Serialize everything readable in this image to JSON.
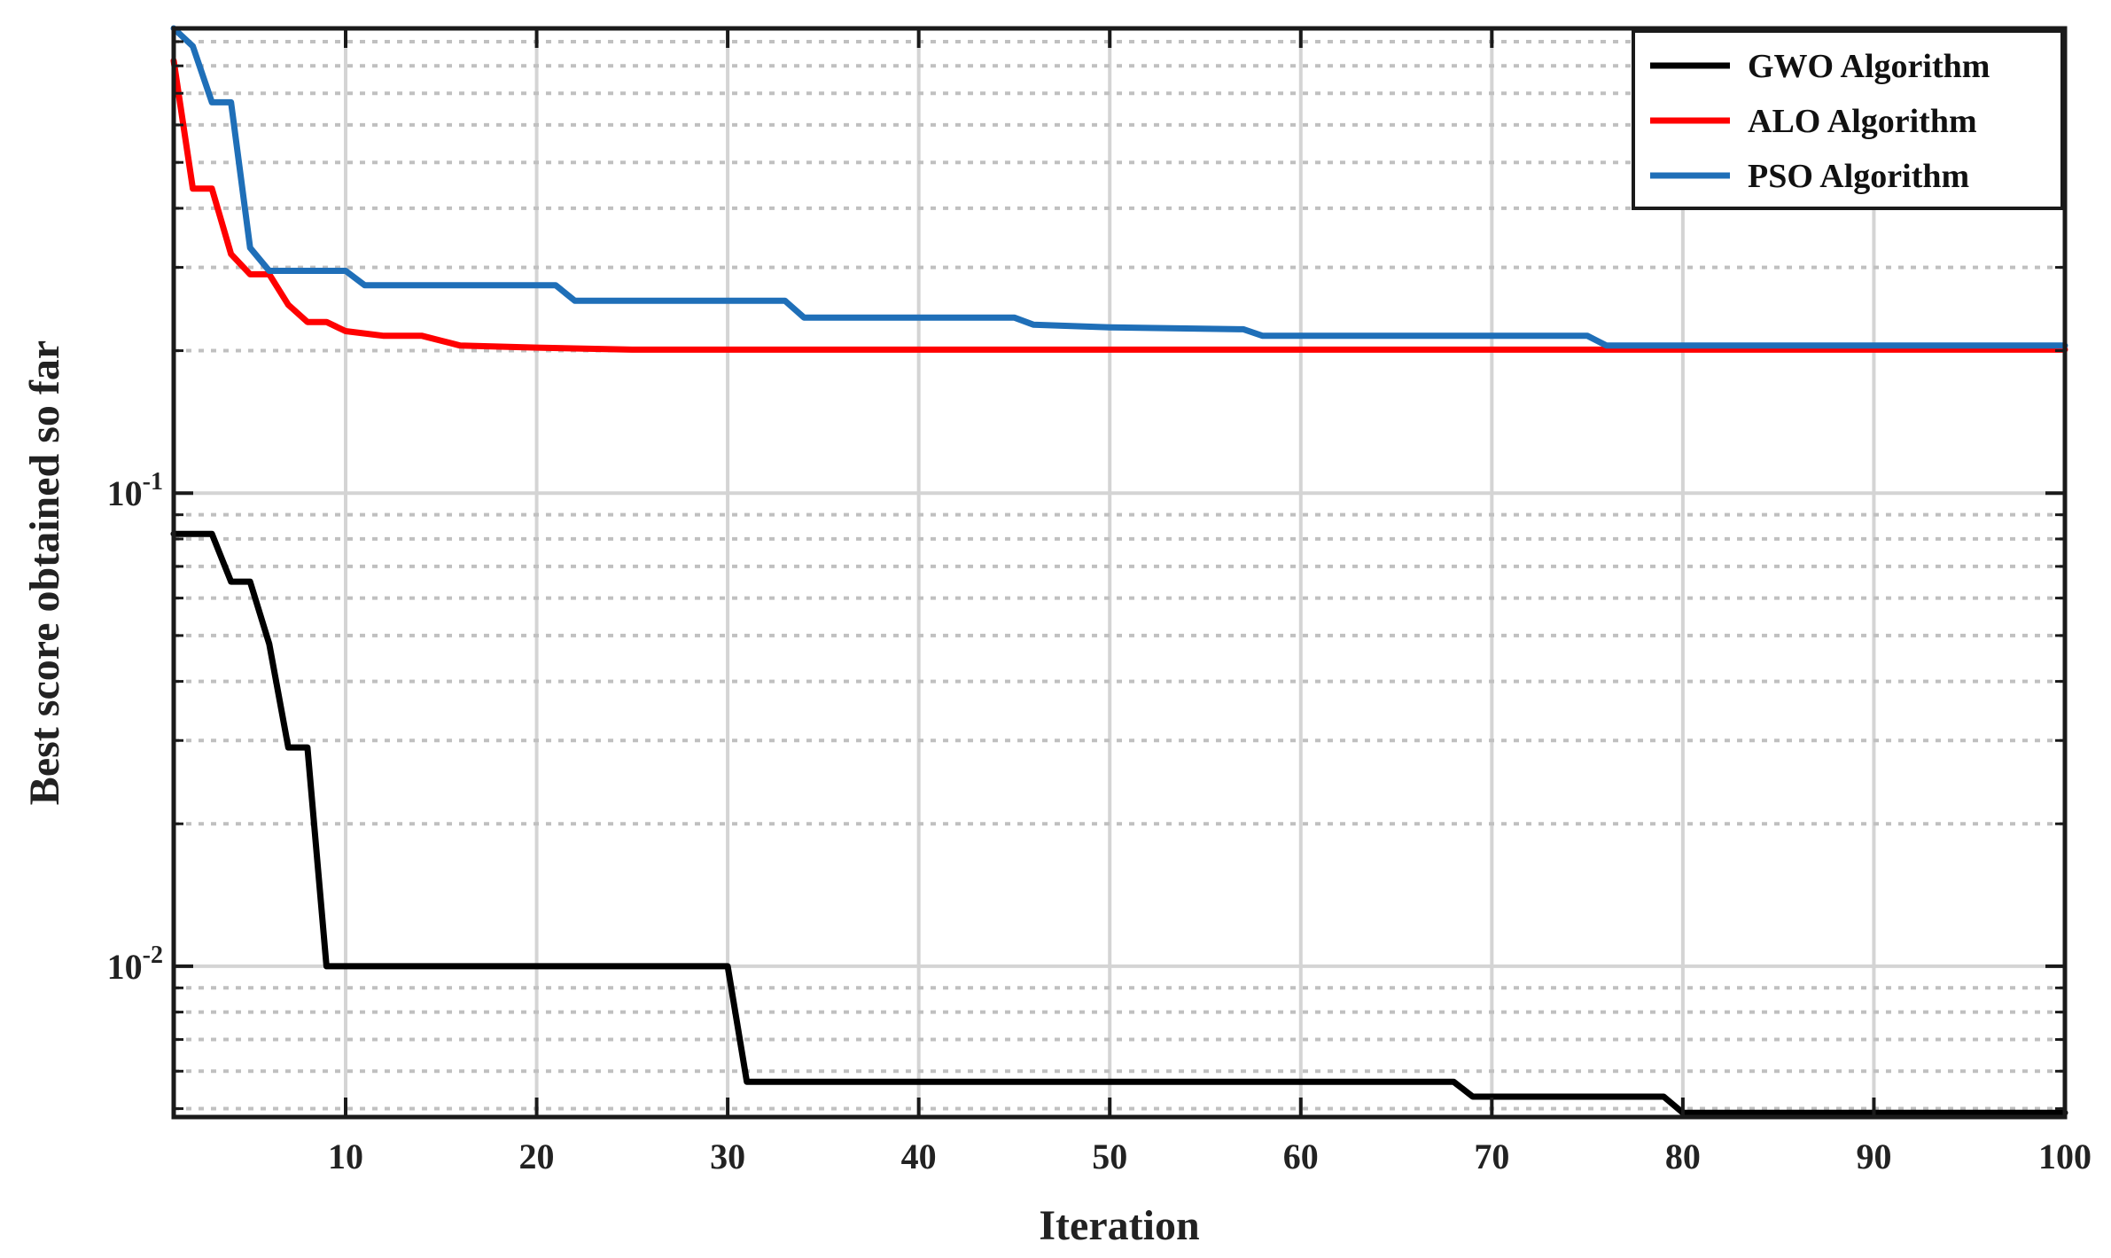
{
  "chart_data": {
    "type": "line",
    "title": "",
    "xlabel": "Iteration",
    "ylabel": "Best score obtained so far",
    "xlim": [
      1,
      100
    ],
    "ylim": [
      0.0048,
      0.96
    ],
    "yscale": "log",
    "xticks": [
      10,
      20,
      30,
      40,
      50,
      60,
      70,
      80,
      90,
      100
    ],
    "yticks": [
      {
        "value": 0.01,
        "base": "10",
        "exp": "-2"
      },
      {
        "value": 0.1,
        "base": "10",
        "exp": "-1"
      }
    ],
    "grid": true,
    "legend": "top-right",
    "series": [
      {
        "name": "GWO Algorithm",
        "color": "#000000",
        "points": [
          [
            1,
            0.082
          ],
          [
            3,
            0.082
          ],
          [
            4,
            0.065
          ],
          [
            5,
            0.065
          ],
          [
            6,
            0.048
          ],
          [
            7,
            0.029
          ],
          [
            8,
            0.029
          ],
          [
            9,
            0.01
          ],
          [
            30,
            0.01
          ],
          [
            31,
            0.0057
          ],
          [
            68,
            0.0057
          ],
          [
            69,
            0.0053
          ],
          [
            79,
            0.0053
          ],
          [
            80,
            0.0049
          ],
          [
            100,
            0.0049
          ]
        ]
      },
      {
        "name": "ALO Algorithm",
        "color": "#ff0000",
        "points": [
          [
            1,
            0.82
          ],
          [
            2,
            0.44
          ],
          [
            3,
            0.44
          ],
          [
            4,
            0.32
          ],
          [
            5,
            0.29
          ],
          [
            6,
            0.29
          ],
          [
            7,
            0.25
          ],
          [
            8,
            0.23
          ],
          [
            9,
            0.23
          ],
          [
            10,
            0.22
          ],
          [
            12,
            0.215
          ],
          [
            14,
            0.215
          ],
          [
            16,
            0.205
          ],
          [
            20,
            0.203
          ],
          [
            25,
            0.201
          ],
          [
            100,
            0.201
          ]
        ]
      },
      {
        "name": "PSO Algorithm",
        "color": "#1f6fb8",
        "points": [
          [
            1,
            0.96
          ],
          [
            2,
            0.88
          ],
          [
            3,
            0.67
          ],
          [
            4,
            0.67
          ],
          [
            5,
            0.33
          ],
          [
            6,
            0.295
          ],
          [
            10,
            0.295
          ],
          [
            11,
            0.275
          ],
          [
            21,
            0.275
          ],
          [
            22,
            0.255
          ],
          [
            33,
            0.255
          ],
          [
            34,
            0.235
          ],
          [
            45,
            0.235
          ],
          [
            46,
            0.227
          ],
          [
            50,
            0.224
          ],
          [
            57,
            0.222
          ],
          [
            58,
            0.215
          ],
          [
            75,
            0.215
          ],
          [
            76,
            0.205
          ],
          [
            100,
            0.205
          ]
        ]
      }
    ]
  }
}
